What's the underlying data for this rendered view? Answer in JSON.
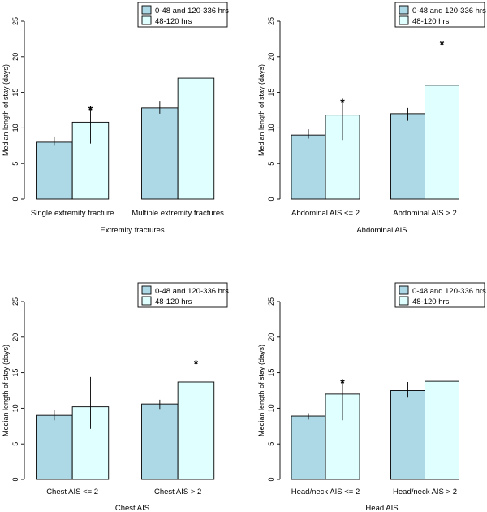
{
  "chart_data": [
    {
      "type": "bar",
      "xlabel": "Extremity fractures",
      "ylabel": "Median length of stay (days)",
      "ylim": [
        0,
        25
      ],
      "yticks": [
        0,
        5,
        10,
        15,
        20,
        25
      ],
      "categories": [
        "Single extremity fracture",
        "Multiple extremity fractures"
      ],
      "series": [
        {
          "name": "0-48 and 120-336 hrs",
          "color": "#add8e6",
          "values": [
            8.0,
            12.8
          ],
          "ci_low": [
            7.5,
            12.0
          ],
          "ci_high": [
            8.8,
            13.8
          ],
          "significant": [
            false,
            false
          ]
        },
        {
          "name": "48-120 hrs",
          "color": "#e0ffff",
          "values": [
            10.8,
            17.0
          ],
          "ci_low": [
            7.8,
            12.0
          ],
          "ci_high": [
            12.8,
            21.5
          ],
          "significant": [
            true,
            false
          ]
        }
      ],
      "legend_position": "top-right"
    },
    {
      "type": "bar",
      "xlabel": "Abdominal AIS",
      "ylabel": "Median length of stay (days)",
      "ylim": [
        0,
        25
      ],
      "yticks": [
        0,
        5,
        10,
        15,
        20,
        25
      ],
      "categories": [
        "Abdominal AIS <= 2",
        "Abdominal AIS > 2"
      ],
      "series": [
        {
          "name": "0-48 and 120-336 hrs",
          "color": "#add8e6",
          "values": [
            9.0,
            12.0
          ],
          "ci_low": [
            8.5,
            11.0
          ],
          "ci_high": [
            9.8,
            12.8
          ],
          "significant": [
            false,
            false
          ]
        },
        {
          "name": "48-120 hrs",
          "color": "#e0ffff",
          "values": [
            11.8,
            16.0
          ],
          "ci_low": [
            8.3,
            12.9
          ],
          "ci_high": [
            13.8,
            22.0
          ],
          "significant": [
            true,
            true
          ]
        }
      ],
      "legend_position": "top-right"
    },
    {
      "type": "bar",
      "xlabel": "Chest AIS",
      "ylabel": "Median length of stay (days)",
      "ylim": [
        0,
        25
      ],
      "yticks": [
        0,
        5,
        10,
        15,
        20,
        25
      ],
      "categories": [
        "Chest AIS <= 2",
        "Chest AIS > 2"
      ],
      "series": [
        {
          "name": "0-48 and 120-336 hrs",
          "color": "#add8e6",
          "values": [
            9.0,
            10.6
          ],
          "ci_low": [
            8.3,
            9.9
          ],
          "ci_high": [
            9.7,
            11.2
          ],
          "significant": [
            false,
            false
          ]
        },
        {
          "name": "48-120 hrs",
          "color": "#e0ffff",
          "values": [
            10.2,
            13.7
          ],
          "ci_low": [
            7.1,
            11.4
          ],
          "ci_high": [
            14.4,
            16.5
          ],
          "significant": [
            false,
            true
          ]
        }
      ],
      "legend_position": "top-right"
    },
    {
      "type": "bar",
      "xlabel": "Head AIS",
      "ylabel": "Median length of stay (days)",
      "ylim": [
        0,
        25
      ],
      "yticks": [
        0,
        5,
        10,
        15,
        20,
        25
      ],
      "categories": [
        "Head/neck AIS <= 2",
        "Head/neck AIS > 2"
      ],
      "series": [
        {
          "name": "0-48 and 120-336 hrs",
          "color": "#add8e6",
          "values": [
            8.9,
            12.5
          ],
          "ci_low": [
            8.4,
            11.5
          ],
          "ci_high": [
            9.3,
            13.7
          ],
          "significant": [
            false,
            false
          ]
        },
        {
          "name": "48-120 hrs",
          "color": "#e0ffff",
          "values": [
            12.0,
            13.8
          ],
          "ci_low": [
            8.3,
            10.6
          ],
          "ci_high": [
            13.8,
            17.8
          ],
          "significant": [
            true,
            false
          ]
        }
      ],
      "legend_position": "top-right"
    }
  ],
  "significance_marker": "*"
}
